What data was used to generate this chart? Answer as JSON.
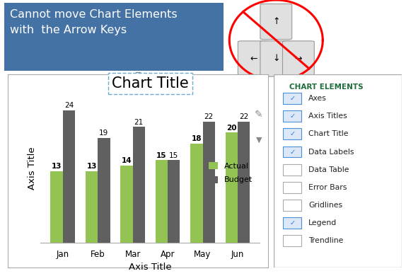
{
  "title": "Chart Title",
  "xlabel": "Axis Title",
  "ylabel": "Axis Title",
  "categories": [
    "Jan",
    "Feb",
    "Mar",
    "Apr",
    "May",
    "Jun"
  ],
  "actual": [
    13,
    13,
    14,
    15,
    18,
    20
  ],
  "budget": [
    24,
    19,
    21,
    15,
    22,
    22
  ],
  "actual_color": "#92c353",
  "budget_color": "#606060",
  "header_bg": "#4472a4",
  "header_text": "Cannot move Chart Elements\nwith  the Arrow Keys",
  "header_text_color": "#ffffff",
  "chart_elements": [
    "Axes",
    "Axis Titles",
    "Chart Title",
    "Data Labels",
    "Data Table",
    "Error Bars",
    "Gridlines",
    "Legend",
    "Trendline"
  ],
  "checked": [
    true,
    true,
    true,
    true,
    false,
    false,
    false,
    true,
    false
  ],
  "panel_header": "CHART ELEMENTS",
  "panel_header_color": "#1f6c3b",
  "check_color": "#2a76d4",
  "figsize": [
    5.74,
    3.9
  ],
  "dpi": 100
}
